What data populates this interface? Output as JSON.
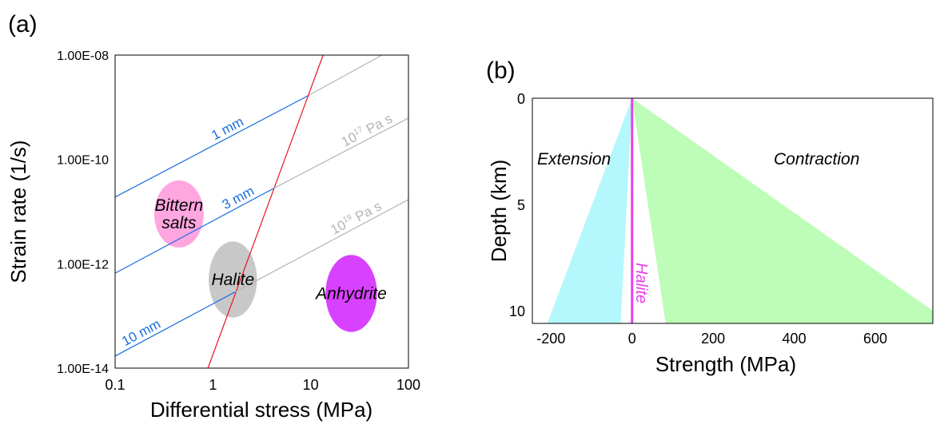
{
  "chart_data": [
    {
      "panel_label": "(a)",
      "type": "line",
      "xscale": "log",
      "yscale": "log",
      "xlabel": "Differential stress (MPa)",
      "ylabel": "Strain rate (1/s)",
      "xlim": [
        0.1,
        100
      ],
      "ylim": [
        1e-14,
        1e-08
      ],
      "xticks": [
        {
          "v": 0.1,
          "label": "0.1"
        },
        {
          "v": 1,
          "label": "1"
        },
        {
          "v": 10,
          "label": "10"
        },
        {
          "v": 100,
          "label": "100"
        }
      ],
      "yticks": [
        {
          "v": 1e-08,
          "label": "1.00E-08"
        },
        {
          "v": 1e-10,
          "label": "1.00E-10"
        },
        {
          "v": 1e-12,
          "label": "1.00E-12"
        },
        {
          "v": 1e-14,
          "label": "1.00E-14"
        }
      ],
      "grid": false,
      "series": [
        {
          "name": "1 mm",
          "label": "1 mm",
          "color": "#1a6ee0",
          "points": [
            [
              0.1,
              1.9e-11
            ],
            [
              9.6,
              1.7e-09
            ]
          ]
        },
        {
          "name": "3 mm",
          "label": "3 mm",
          "color": "#1a6ee0",
          "points": [
            [
              0.1,
              6.6e-13
            ],
            [
              4.2,
              2.8e-11
            ]
          ]
        },
        {
          "name": "10 mm",
          "label": "10 mm",
          "color": "#1a6ee0",
          "points": [
            [
              0.1,
              1.7e-14
            ],
            [
              1.7,
              2.9e-13
            ]
          ]
        },
        {
          "name": "dislocation creep",
          "label": "",
          "color": "#e8141e",
          "points": [
            [
              0.89,
              1e-14
            ],
            [
              13.4,
              1e-08
            ]
          ]
        },
        {
          "name": "viscosity 10^16",
          "label": "",
          "color": "#b4b4b4",
          "points": [
            [
              9.6,
              1.7e-09
            ],
            [
              53.6,
              1e-08
            ]
          ]
        },
        {
          "name": "viscosity 10^17",
          "label": "10",
          "sup": "17",
          "unit": " Pa s",
          "color": "#b4b4b4",
          "points": [
            [
              4.2,
              2.8e-11
            ],
            [
              100,
              6.2e-10
            ]
          ]
        },
        {
          "name": "viscosity 10^19",
          "label": "10",
          "sup": "19",
          "unit": " Pa s",
          "color": "#b4b4b4",
          "points": [
            [
              1.7,
              2.9e-13
            ],
            [
              100,
              1.7e-11
            ]
          ]
        }
      ],
      "regions": [
        {
          "name": "Bittern salts",
          "lines": [
            "Bittern",
            "salts"
          ],
          "color": "#ffa6e1",
          "center": [
            0.45,
            9e-12
          ],
          "span_x": [
            0.25,
            0.8
          ],
          "span_y": [
            1.8e-12,
            3.5e-11
          ]
        },
        {
          "name": "Halite",
          "lines": [
            "Halite"
          ],
          "color": "#c8c8c8",
          "center": [
            1.6,
            5e-13
          ],
          "span_x": [
            0.9,
            2.8
          ],
          "span_y": [
            9e-14,
            2.6e-12
          ]
        },
        {
          "name": "Anhydrite",
          "lines": [
            "Anhydrite"
          ],
          "color": "#d841ff",
          "center": [
            26,
            2.7e-13
          ],
          "span_x": [
            14,
            47
          ],
          "span_y": [
            5e-14,
            1.5e-12
          ]
        }
      ]
    },
    {
      "panel_label": "(b)",
      "type": "area",
      "xlabel": "Strength (MPa)",
      "ylabel": "Depth (km)",
      "xlim": [
        -246,
        742
      ],
      "ylim": [
        0,
        10.6
      ],
      "y_inverted": true,
      "xticks": [
        {
          "v": -200,
          "label": "-200"
        },
        {
          "v": 0,
          "label": "0"
        },
        {
          "v": 200,
          "label": "200"
        },
        {
          "v": 400,
          "label": "400"
        },
        {
          "v": 600,
          "label": "600"
        }
      ],
      "yticks": [
        {
          "v": 0,
          "label": "0"
        },
        {
          "v": 5,
          "label": "5"
        },
        {
          "v": 10,
          "label": "10"
        }
      ],
      "grid": false,
      "series": [
        {
          "name": "Extension",
          "label": "Extension",
          "color": "#b4f7fd",
          "polygon": [
            [
              0,
              0
            ],
            [
              -209,
              10.6
            ],
            [
              -28,
              10.6
            ]
          ]
        },
        {
          "name": "Contraction",
          "label": "Contraction",
          "color": "#bdfdb7",
          "polygon": [
            [
              0,
              0
            ],
            [
              83,
              10.6
            ],
            [
              742,
              10.6
            ],
            [
              742,
              10.0
            ]
          ]
        },
        {
          "name": "Halite",
          "label": "Halite",
          "color": "#e940ea",
          "points": [
            [
              0,
              0
            ],
            [
              0,
              10.6
            ]
          ]
        }
      ]
    }
  ]
}
